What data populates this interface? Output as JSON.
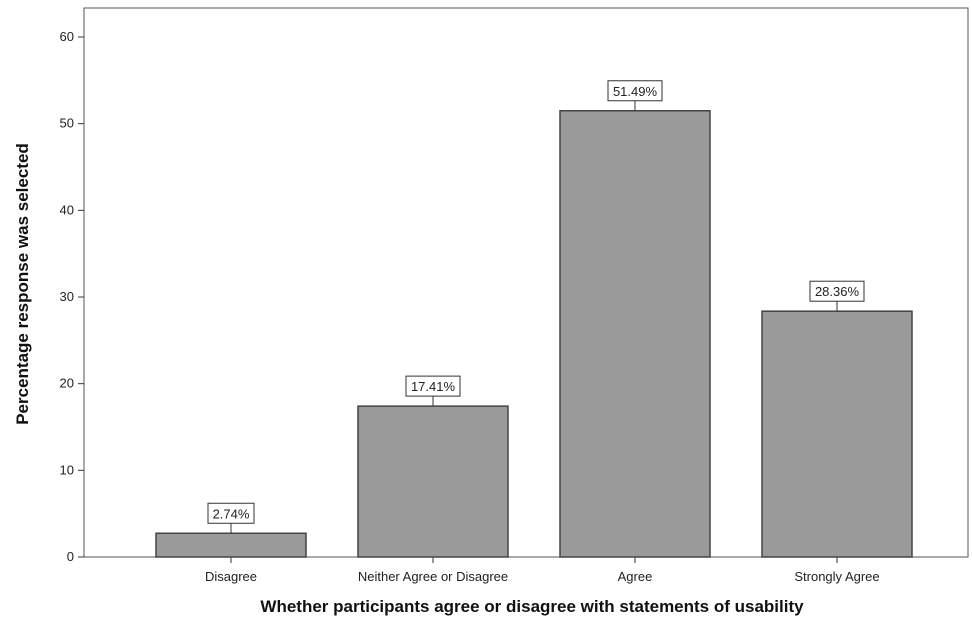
{
  "chart_data": {
    "type": "bar",
    "title": "",
    "xlabel": "Whether participants agree or disagree with statements of usability",
    "ylabel": "Percentage response was selected",
    "categories": [
      "Disagree",
      "Neither Agree or Disagree",
      "Agree",
      "Strongly Agree"
    ],
    "values": [
      2.74,
      17.41,
      51.49,
      28.36
    ],
    "data_labels": [
      "2.74%",
      "17.41%",
      "51.49%",
      "28.36%"
    ],
    "ylim": [
      0,
      60
    ],
    "yticks": [
      0,
      10,
      20,
      30,
      40,
      50,
      60
    ],
    "grid": false,
    "legend": "none",
    "bar_color": "#9a9a9a",
    "bar_edge_color": "#444444"
  }
}
